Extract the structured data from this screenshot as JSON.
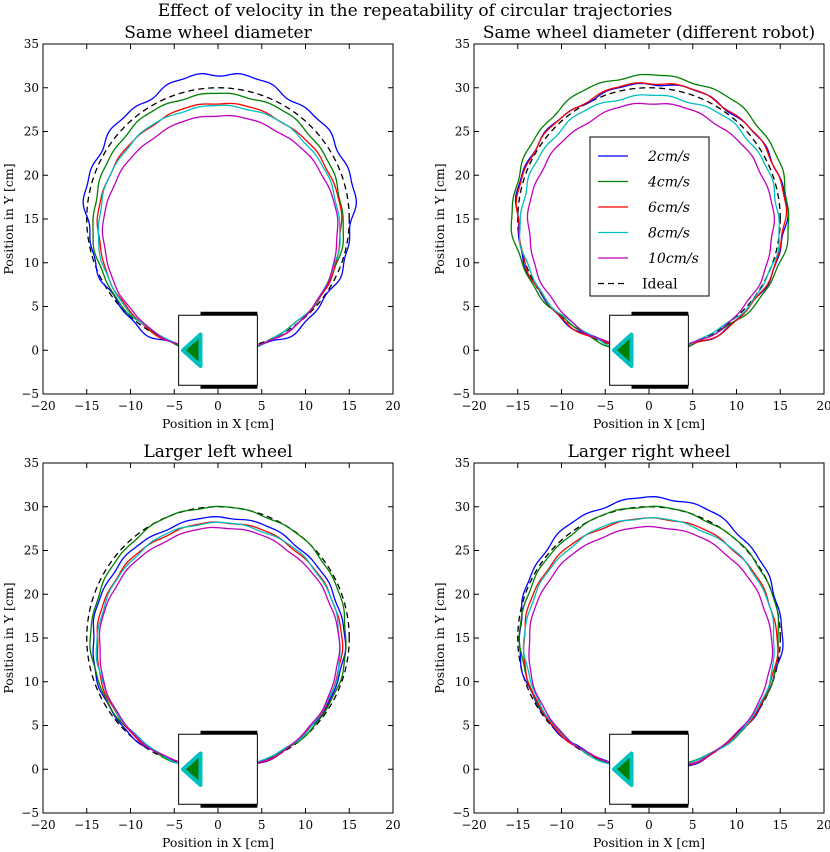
{
  "figure": {
    "suptitle": "Effect of velocity in the repeatability of circular trajectories"
  },
  "chart_data": [
    {
      "type": "line",
      "title": "Same wheel diameter",
      "xlabel": "Position in X [cm]",
      "ylabel": "Position in Y [cm]",
      "xlim": [
        -20,
        20
      ],
      "ylim": [
        -5,
        35
      ],
      "xticks": [
        -20,
        -15,
        -10,
        -5,
        0,
        5,
        10,
        15,
        20
      ],
      "yticks": [
        -5,
        0,
        5,
        10,
        15,
        20,
        25,
        30,
        35
      ],
      "ideal": {
        "name": "Ideal",
        "cx": 0,
        "cy": 15,
        "r": 15
      },
      "series": [
        {
          "name": "2cm/s",
          "color": "#0000ff",
          "cx": 0.2,
          "cy": 15.6,
          "rx": 15.3,
          "ry": 15.9,
          "noise": 0.35
        },
        {
          "name": "4cm/s",
          "color": "#007f00",
          "cx": 0.0,
          "cy": 14.6,
          "rx": 14.3,
          "ry": 14.8,
          "noise": 0.15
        },
        {
          "name": "6cm/s",
          "color": "#ff0000",
          "cx": 0.2,
          "cy": 14.0,
          "rx": 13.9,
          "ry": 14.2,
          "noise": 0.12
        },
        {
          "name": "8cm/s",
          "color": "#00bfbf",
          "cx": 0.1,
          "cy": 13.9,
          "rx": 13.8,
          "ry": 14.1,
          "noise": 0.12
        },
        {
          "name": "10cm/s",
          "color": "#bf00bf",
          "cx": 0.3,
          "cy": 13.3,
          "rx": 13.4,
          "ry": 13.5,
          "noise": 0.1
        }
      ]
    },
    {
      "type": "line",
      "title": "Same wheel diameter (different robot)",
      "xlabel": "Position in X [cm]",
      "ylabel": "Position in Y [cm]",
      "xlim": [
        -20,
        20
      ],
      "ylim": [
        -5,
        35
      ],
      "xticks": [
        -20,
        -15,
        -10,
        -5,
        0,
        5,
        10,
        15,
        20
      ],
      "yticks": [
        -5,
        0,
        5,
        10,
        15,
        20,
        25,
        30,
        35
      ],
      "ideal": {
        "name": "Ideal",
        "cx": 0,
        "cy": 15,
        "r": 15
      },
      "series": [
        {
          "name": "2cm/s",
          "color": "#0000ff",
          "cx": 0.2,
          "cy": 15.2,
          "rx": 15.4,
          "ry": 15.2,
          "noise": 0.25
        },
        {
          "name": "4cm/s",
          "color": "#007f00",
          "cx": 0.2,
          "cy": 15.7,
          "rx": 15.8,
          "ry": 15.8,
          "noise": 0.2
        },
        {
          "name": "6cm/s",
          "color": "#ff0000",
          "cx": 0.2,
          "cy": 15.2,
          "rx": 15.3,
          "ry": 15.3,
          "noise": 0.2
        },
        {
          "name": "8cm/s",
          "color": "#00bfbf",
          "cx": 0.1,
          "cy": 14.6,
          "rx": 14.8,
          "ry": 14.6,
          "noise": 0.2
        },
        {
          "name": "10cm/s",
          "color": "#bf00bf",
          "cx": 0.2,
          "cy": 14.1,
          "rx": 14.0,
          "ry": 14.1,
          "noise": 0.15
        }
      ],
      "legend": {
        "placement": "center",
        "entries": [
          "2cm/s",
          "4cm/s",
          "6cm/s",
          "8cm/s",
          "10cm/s",
          "Ideal"
        ]
      }
    },
    {
      "type": "line",
      "title": "Larger left wheel",
      "xlabel": "Position in X [cm]",
      "ylabel": "Position in Y [cm]",
      "xlim": [
        -20,
        20
      ],
      "ylim": [
        -5,
        35
      ],
      "xticks": [
        -20,
        -15,
        -10,
        -5,
        0,
        5,
        10,
        15,
        20
      ],
      "yticks": [
        -5,
        0,
        5,
        10,
        15,
        20,
        25,
        30,
        35
      ],
      "ideal": {
        "name": "Ideal",
        "cx": 0,
        "cy": 15,
        "r": 15
      },
      "series": [
        {
          "name": "2cm/s",
          "color": "#0000ff",
          "cx": 0.0,
          "cy": 14.4,
          "rx": 14.4,
          "ry": 14.4,
          "noise": 0.15
        },
        {
          "name": "4cm/s",
          "color": "#007f00",
          "cx": 0.1,
          "cy": 15.0,
          "rx": 14.6,
          "ry": 15.0,
          "noise": 0.12
        },
        {
          "name": "6cm/s",
          "color": "#ff0000",
          "cx": 0.1,
          "cy": 14.1,
          "rx": 14.0,
          "ry": 14.1,
          "noise": 0.12
        },
        {
          "name": "8cm/s",
          "color": "#00bfbf",
          "cx": 0.1,
          "cy": 14.1,
          "rx": 13.9,
          "ry": 14.1,
          "noise": 0.12
        },
        {
          "name": "10cm/s",
          "color": "#bf00bf",
          "cx": 0.1,
          "cy": 13.8,
          "rx": 13.7,
          "ry": 13.8,
          "noise": 0.1
        }
      ]
    },
    {
      "type": "line",
      "title": "Larger right wheel",
      "xlabel": "Position in X [cm]",
      "ylabel": "Position in Y [cm]",
      "xlim": [
        -20,
        20
      ],
      "ylim": [
        -5,
        35
      ],
      "xticks": [
        -20,
        -15,
        -10,
        -5,
        0,
        5,
        10,
        15,
        20
      ],
      "yticks": [
        -5,
        0,
        5,
        10,
        15,
        20,
        25,
        30,
        35
      ],
      "ideal": {
        "name": "Ideal",
        "cx": 0,
        "cy": 15,
        "r": 15
      },
      "series": [
        {
          "name": "2cm/s",
          "color": "#0000ff",
          "cx": 0.1,
          "cy": 15.5,
          "rx": 15.0,
          "ry": 15.6,
          "noise": 0.2
        },
        {
          "name": "4cm/s",
          "color": "#007f00",
          "cx": 0.1,
          "cy": 15.0,
          "rx": 14.8,
          "ry": 15.0,
          "noise": 0.12
        },
        {
          "name": "6cm/s",
          "color": "#ff0000",
          "cx": 0.1,
          "cy": 14.3,
          "rx": 14.5,
          "ry": 14.4,
          "noise": 0.12
        },
        {
          "name": "8cm/s",
          "color": "#00bfbf",
          "cx": 0.1,
          "cy": 14.3,
          "rx": 14.3,
          "ry": 14.4,
          "noise": 0.12
        },
        {
          "name": "10cm/s",
          "color": "#bf00bf",
          "cx": 0.1,
          "cy": 13.8,
          "rx": 13.9,
          "ry": 13.9,
          "noise": 0.1
        }
      ]
    }
  ],
  "robot_marker": {
    "body_x": [
      -4.5,
      4.5
    ],
    "body_y": [
      -4,
      4
    ],
    "wheel_x": [
      -2,
      4.5
    ],
    "wheel_y_top": [
      4,
      4.4
    ],
    "wheel_y_bottom": [
      -4.4,
      -4
    ],
    "arrow_tip": [
      -4,
      0
    ],
    "arrow_base_x": -2,
    "arrow_half_height": 1.8,
    "arrow_fill": "#007f00",
    "arrow_edge": "#00bfbf"
  }
}
